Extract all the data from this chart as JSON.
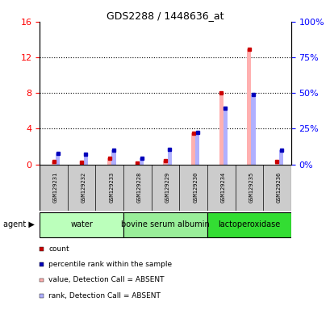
{
  "title": "GDS2288 / 1448636_at",
  "samples": [
    "GSM129231",
    "GSM129232",
    "GSM129233",
    "GSM129228",
    "GSM129229",
    "GSM129230",
    "GSM129234",
    "GSM129235",
    "GSM129236"
  ],
  "groups": [
    {
      "label": "water",
      "color": "#bbffbb",
      "samples": [
        0,
        1,
        2
      ]
    },
    {
      "label": "bovine serum albumin",
      "color": "#99ee99",
      "samples": [
        3,
        4,
        5
      ]
    },
    {
      "label": "lactoperoxidase",
      "color": "#33dd33",
      "samples": [
        6,
        7,
        8
      ]
    }
  ],
  "value_absent": [
    0.28,
    0.22,
    0.65,
    0.1,
    0.38,
    3.45,
    8.05,
    12.9,
    0.28
  ],
  "rank_absent": [
    1.2,
    1.1,
    1.6,
    0.65,
    1.7,
    3.6,
    6.3,
    7.8,
    1.6
  ],
  "ylim_left": [
    0,
    16
  ],
  "ylim_right": [
    0,
    100
  ],
  "yticks_left": [
    0,
    4,
    8,
    12,
    16
  ],
  "yticks_right": [
    0,
    25,
    50,
    75,
    100
  ],
  "yticklabels_left": [
    "0",
    "4",
    "8",
    "12",
    "16"
  ],
  "yticklabels_right": [
    "0%",
    "25%",
    "50%",
    "75%",
    "100%"
  ],
  "gridlines_at": [
    4,
    8,
    12
  ],
  "bar_width": 0.15,
  "color_count": "#cc0000",
  "color_rank": "#0000bb",
  "color_value_absent": "#ffb0b0",
  "color_rank_absent": "#b0b0ff",
  "legend_items": [
    {
      "color": "#cc0000",
      "label": "count"
    },
    {
      "color": "#0000bb",
      "label": "percentile rank within the sample"
    },
    {
      "color": "#ffb0b0",
      "label": "value, Detection Call = ABSENT"
    },
    {
      "color": "#b0b0ff",
      "label": "rank, Detection Call = ABSENT"
    }
  ],
  "sample_box_color": "#cccccc",
  "agent_label": "agent"
}
